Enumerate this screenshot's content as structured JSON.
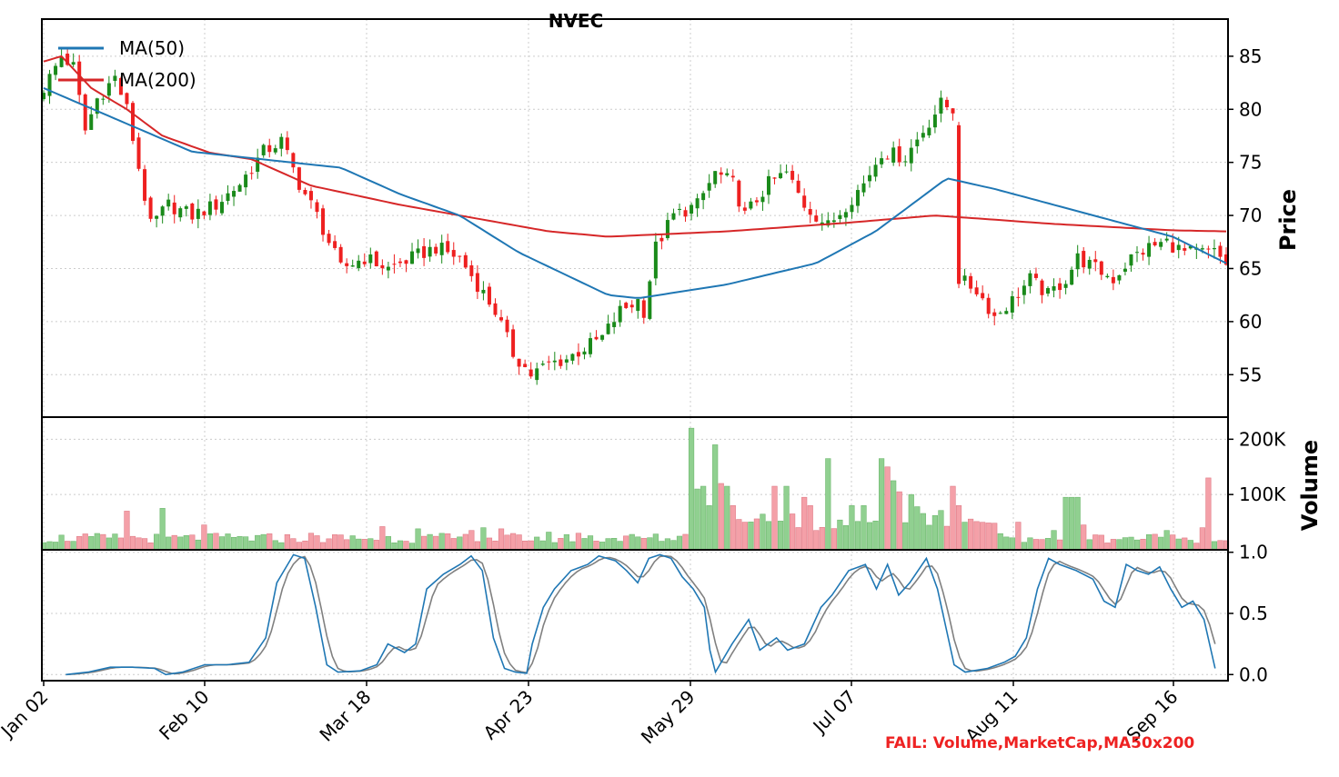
{
  "chart_data": {
    "type": "candlestick",
    "title": "NVEC",
    "x_tick_labels": [
      "Jan 02",
      "Feb 10",
      "Mar 18",
      "Apr 23",
      "May 29",
      "Jul 07",
      "Aug 11",
      "Sep 16"
    ],
    "price_panel": {
      "ylabel": "Price",
      "ylim": [
        51,
        88.5
      ],
      "yticks": [
        55,
        60,
        65,
        70,
        75,
        80,
        85
      ],
      "legend": {
        "placement": "top-left",
        "entries": [
          "MA(50)",
          "MA(200)"
        ]
      },
      "colors": {
        "up": "#1a8a1a",
        "down": "#ee2020",
        "ma50": "#1f77b4",
        "ma200": "#d62728"
      },
      "anchors": [
        [
          0,
          82
        ],
        [
          3,
          85
        ],
        [
          5,
          84
        ],
        [
          7,
          78
        ],
        [
          9,
          81
        ],
        [
          12,
          83
        ],
        [
          14,
          80
        ],
        [
          18,
          69
        ],
        [
          21,
          71
        ],
        [
          25,
          70
        ],
        [
          29,
          71
        ],
        [
          33,
          73
        ],
        [
          37,
          76
        ],
        [
          40,
          77
        ],
        [
          43,
          73
        ],
        [
          46,
          70
        ],
        [
          50,
          65
        ],
        [
          54,
          66
        ],
        [
          58,
          65
        ],
        [
          62,
          66
        ],
        [
          66,
          67
        ],
        [
          70,
          66
        ],
        [
          73,
          63.5
        ],
        [
          76,
          61
        ],
        [
          79,
          57
        ],
        [
          82,
          55
        ],
        [
          85,
          56
        ],
        [
          88,
          56.5
        ],
        [
          91,
          57.5
        ],
        [
          94,
          58.5
        ],
        [
          97,
          61
        ],
        [
          100,
          62
        ],
        [
          101,
          61
        ],
        [
          103,
          67
        ],
        [
          106,
          70
        ],
        [
          110,
          71
        ],
        [
          113,
          74
        ],
        [
          116,
          73
        ],
        [
          118,
          70
        ],
        [
          122,
          73
        ],
        [
          125,
          74
        ],
        [
          128,
          71
        ],
        [
          132,
          69
        ],
        [
          135,
          71
        ],
        [
          138,
          73
        ],
        [
          141,
          76
        ],
        [
          145,
          75.5
        ],
        [
          148,
          78
        ],
        [
          151,
          80.5
        ],
        [
          153,
          80
        ],
        [
          154,
          64
        ],
        [
          157,
          63
        ],
        [
          160,
          60.5
        ],
        [
          163,
          62
        ],
        [
          166,
          64
        ],
        [
          169,
          62.5
        ],
        [
          172,
          64
        ],
        [
          174,
          66
        ],
        [
          177,
          65
        ],
        [
          180,
          64
        ],
        [
          183,
          66
        ],
        [
          186,
          67
        ],
        [
          189,
          67.5
        ],
        [
          192,
          66.5
        ],
        [
          195,
          66.5
        ],
        [
          197,
          66.5
        ],
        [
          199,
          65.5
        ]
      ],
      "ma50": [
        [
          0,
          82
        ],
        [
          25,
          76
        ],
        [
          50,
          74.5
        ],
        [
          60,
          72
        ],
        [
          70,
          70
        ],
        [
          80,
          66.5
        ],
        [
          95,
          62.5
        ],
        [
          100,
          62.2
        ],
        [
          115,
          63.5
        ],
        [
          130,
          65.5
        ],
        [
          140,
          68.5
        ],
        [
          152,
          73.5
        ],
        [
          160,
          72.5
        ],
        [
          170,
          71
        ],
        [
          180,
          69.5
        ],
        [
          190,
          68
        ],
        [
          199,
          65.5
        ]
      ],
      "ma200": [
        [
          0,
          84.5
        ],
        [
          3,
          85
        ],
        [
          8,
          82
        ],
        [
          14,
          80
        ],
        [
          20,
          77.5
        ],
        [
          28,
          75.9
        ],
        [
          35,
          75.3
        ],
        [
          45,
          72.8
        ],
        [
          60,
          71
        ],
        [
          75,
          69.5
        ],
        [
          85,
          68.5
        ],
        [
          95,
          68
        ],
        [
          115,
          68.5
        ],
        [
          135,
          69.3
        ],
        [
          150,
          70
        ],
        [
          170,
          69.2
        ],
        [
          190,
          68.6
        ],
        [
          199,
          68.5
        ]
      ]
    },
    "volume_panel": {
      "ylabel": "Volume",
      "ylim": [
        0,
        240000
      ],
      "yticks": [
        100000,
        200000
      ],
      "ytick_labels": [
        "100K",
        "200K"
      ],
      "colors": {
        "up": "#90d090",
        "down": "#f4a0a8"
      },
      "spikes": [
        [
          14,
          70000
        ],
        [
          20,
          75000
        ],
        [
          27,
          45000
        ],
        [
          45,
          30000
        ],
        [
          57,
          42000
        ],
        [
          63,
          38000
        ],
        [
          72,
          35000
        ],
        [
          74,
          40000
        ],
        [
          77,
          38000
        ],
        [
          85,
          32000
        ],
        [
          90,
          30000
        ],
        [
          98,
          25000
        ],
        [
          110,
          45000
        ],
        [
          115,
          20000
        ],
        [
          108,
          28000
        ],
        [
          125,
          25000
        ],
        [
          130,
          35000
        ],
        [
          142,
          75000
        ],
        [
          144,
          70000
        ],
        [
          147,
          78000
        ],
        [
          150,
          62000
        ],
        [
          155,
          50000
        ],
        [
          164,
          50000
        ],
        [
          170,
          35000
        ],
        [
          175,
          45000
        ],
        [
          182,
          22000
        ],
        [
          189,
          35000
        ],
        [
          195,
          40000
        ],
        [
          197,
          15000
        ]
      ],
      "overrides": [
        [
          109,
          220000
        ],
        [
          110,
          110000
        ],
        [
          111,
          115000
        ],
        [
          112,
          80000
        ],
        [
          113,
          190000
        ],
        [
          114,
          120000
        ],
        [
          115,
          115000
        ],
        [
          116,
          80000
        ],
        [
          117,
          55000
        ],
        [
          118,
          50000
        ],
        [
          123,
          115000
        ],
        [
          125,
          115000
        ],
        [
          128,
          95000
        ],
        [
          129,
          80000
        ],
        [
          132,
          165000
        ],
        [
          136,
          80000
        ],
        [
          138,
          80000
        ],
        [
          141,
          165000
        ],
        [
          142,
          150000
        ],
        [
          143,
          125000
        ],
        [
          144,
          105000
        ],
        [
          146,
          100000
        ],
        [
          153,
          115000
        ],
        [
          154,
          80000
        ],
        [
          172,
          95000
        ],
        [
          173,
          95000
        ],
        [
          174,
          95000
        ],
        [
          196,
          130000
        ]
      ]
    },
    "stochastic_panel": {
      "ylim": [
        -0.05,
        1.02
      ],
      "yticks": [
        0.0,
        0.5,
        1.0
      ],
      "ytick_labels": [
        "0.0",
        "0.5",
        "1.0"
      ],
      "colors": {
        "fast": "#1f77b4",
        "slow": "#808080"
      },
      "fast": [
        [
          4,
          0
        ],
        [
          8,
          0.02
        ],
        [
          12,
          0.06
        ],
        [
          16,
          0.06
        ],
        [
          20,
          0.05
        ],
        [
          22,
          0.0
        ],
        [
          25,
          0.02
        ],
        [
          29,
          0.08
        ],
        [
          33,
          0.08
        ],
        [
          37,
          0.1
        ],
        [
          40,
          0.3
        ],
        [
          42,
          0.75
        ],
        [
          45,
          0.98
        ],
        [
          47,
          0.95
        ],
        [
          49,
          0.55
        ],
        [
          51,
          0.08
        ],
        [
          53,
          0.02
        ],
        [
          57,
          0.03
        ],
        [
          60,
          0.08
        ],
        [
          62,
          0.25
        ],
        [
          65,
          0.18
        ],
        [
          67,
          0.25
        ],
        [
          69,
          0.7
        ],
        [
          72,
          0.82
        ],
        [
          75,
          0.9
        ],
        [
          77,
          0.97
        ],
        [
          79,
          0.85
        ],
        [
          81,
          0.3
        ],
        [
          83,
          0.05
        ],
        [
          85,
          0.02
        ],
        [
          87,
          0.01
        ],
        [
          88,
          0.25
        ],
        [
          90,
          0.55
        ],
        [
          92,
          0.7
        ],
        [
          95,
          0.85
        ],
        [
          98,
          0.9
        ],
        [
          100,
          0.97
        ],
        [
          103,
          0.93
        ],
        [
          105,
          0.85
        ],
        [
          107,
          0.75
        ],
        [
          109,
          0.95
        ],
        [
          111,
          0.98
        ],
        [
          113,
          0.95
        ],
        [
          115,
          0.8
        ],
        [
          117,
          0.7
        ],
        [
          119,
          0.55
        ],
        [
          120,
          0.2
        ],
        [
          121,
          0.02
        ],
        [
          124,
          0.25
        ],
        [
          127,
          0.45
        ],
        [
          129,
          0.2
        ],
        [
          132,
          0.3
        ],
        [
          134,
          0.2
        ],
        [
          137,
          0.25
        ],
        [
          140,
          0.55
        ],
        [
          142,
          0.65
        ],
        [
          145,
          0.85
        ],
        [
          148,
          0.9
        ],
        [
          150,
          0.7
        ],
        [
          152,
          0.9
        ],
        [
          154,
          0.65
        ],
        [
          156,
          0.75
        ],
        [
          159,
          0.95
        ],
        [
          161,
          0.7
        ],
        [
          164,
          0.08
        ],
        [
          166,
          0.02
        ],
        [
          170,
          0.05
        ],
        [
          173,
          0.1
        ],
        [
          175,
          0.15
        ],
        [
          177,
          0.3
        ],
        [
          179,
          0.7
        ],
        [
          181,
          0.95
        ],
        [
          183,
          0.9
        ],
        [
          186,
          0.85
        ],
        [
          189,
          0.78
        ],
        [
          191,
          0.6
        ],
        [
          193,
          0.55
        ],
        [
          195,
          0.9
        ],
        [
          197,
          0.85
        ],
        [
          199,
          0.82
        ],
        [
          201,
          0.88
        ],
        [
          203,
          0.7
        ],
        [
          205,
          0.55
        ],
        [
          207,
          0.6
        ],
        [
          209,
          0.45
        ],
        [
          211,
          0.05
        ]
      ]
    },
    "annotation": "FAIL: Volume,MarketCap,MA50x200"
  }
}
